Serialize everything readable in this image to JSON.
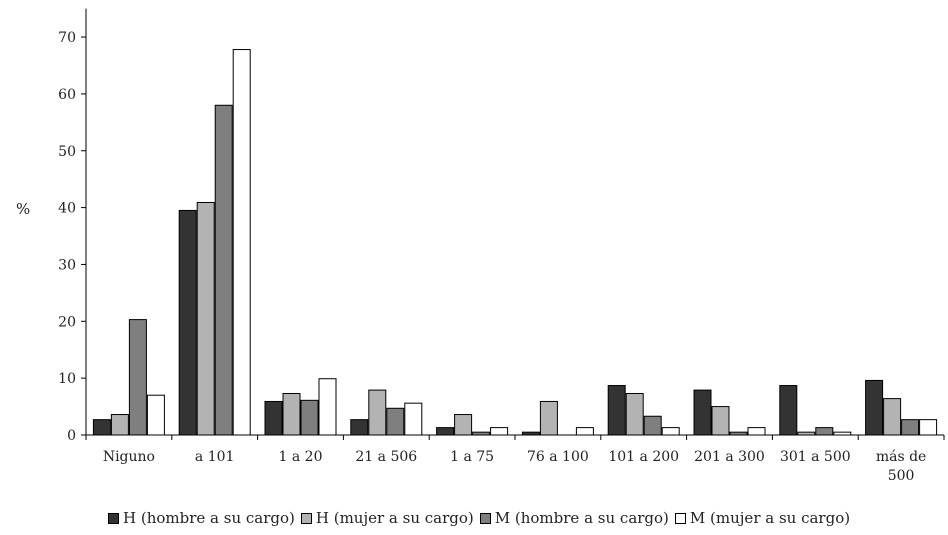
{
  "chart_data": {
    "type": "bar",
    "title": "",
    "xlabel": "",
    "ylabel": "%",
    "ylim": [
      0,
      75
    ],
    "yticks": [
      0,
      10,
      20,
      30,
      40,
      50,
      60,
      70
    ],
    "grid": false,
    "legend_position": "bottom",
    "categories": [
      [
        "Niguno"
      ],
      [
        "a 101"
      ],
      [
        "1 a 20"
      ],
      [
        "21 a 506"
      ],
      [
        "1 a 75"
      ],
      [
        "76 a 100"
      ],
      [
        "101 a 200"
      ],
      [
        "201 a 300"
      ],
      [
        "301 a 500"
      ],
      [
        "más de",
        "500"
      ]
    ],
    "series": [
      {
        "name": "H (hombre a su cargo)",
        "color": "#333333",
        "values": [
          2.7,
          39.5,
          5.9,
          2.7,
          1.3,
          0.5,
          8.7,
          7.9,
          8.7,
          9.6
        ]
      },
      {
        "name": "H (mujer a su cargo)",
        "color": "#b3b3b3",
        "values": [
          3.6,
          40.9,
          7.3,
          7.9,
          3.6,
          5.9,
          7.3,
          5.0,
          0.5,
          6.4
        ]
      },
      {
        "name": "M (hombre a su cargo)",
        "color": "#7f7f7f",
        "values": [
          20.3,
          58.0,
          6.1,
          4.7,
          0.5,
          0.0,
          3.3,
          0.5,
          1.3,
          2.7
        ]
      },
      {
        "name": "M (mujer a su cargo)",
        "color": "#ffffff",
        "values": [
          7.0,
          67.8,
          9.9,
          5.6,
          1.3,
          1.3,
          1.3,
          1.3,
          0.5,
          2.7
        ]
      }
    ]
  }
}
